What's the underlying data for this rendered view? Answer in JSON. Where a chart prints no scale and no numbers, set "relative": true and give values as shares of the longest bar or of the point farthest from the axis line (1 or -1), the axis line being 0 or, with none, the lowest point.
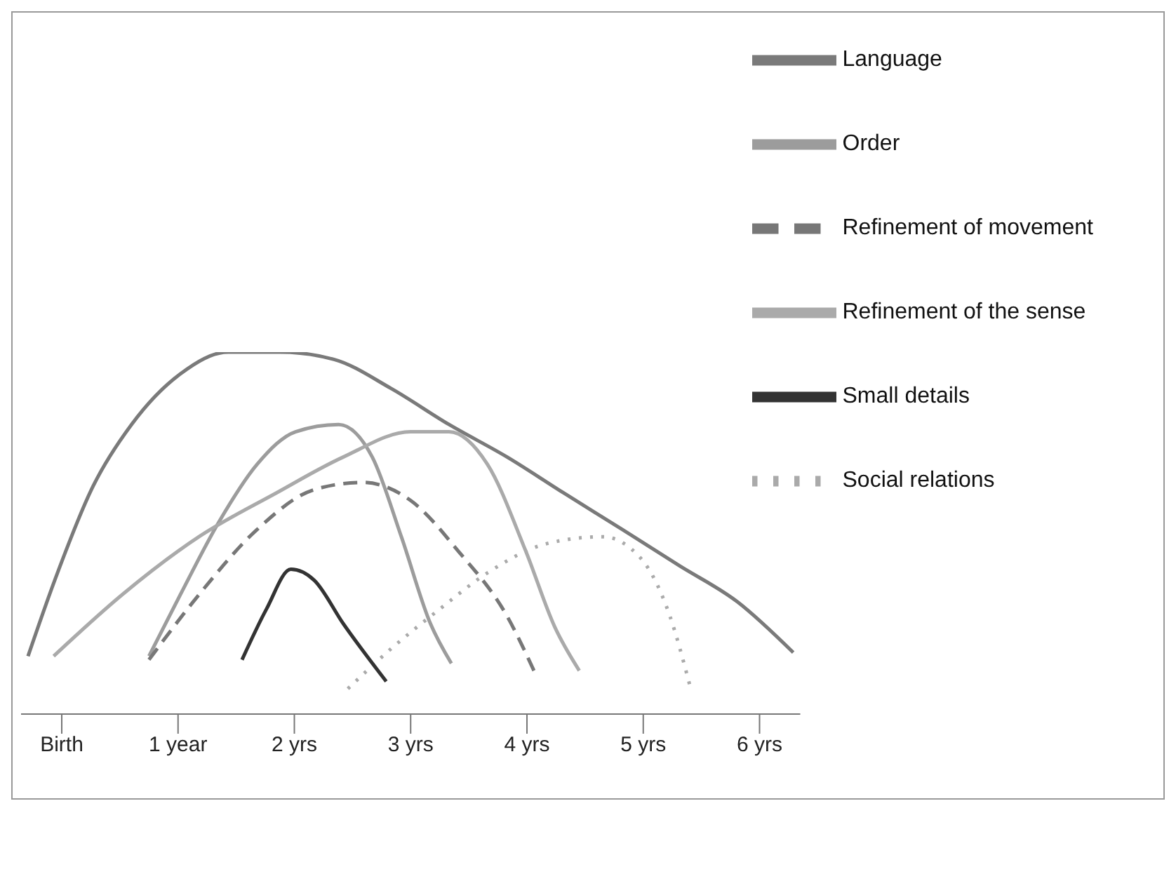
{
  "chart_data": {
    "type": "line",
    "relative": true,
    "legend": "top right",
    "xlim": [
      -0.35,
      6.35
    ],
    "xticks": [
      {
        "value": 0,
        "label": "Birth"
      },
      {
        "value": 1,
        "label": "1 year"
      },
      {
        "value": 2,
        "label": "2 yrs"
      },
      {
        "value": 3,
        "label": "3 yrs"
      },
      {
        "value": 4,
        "label": "4 yrs"
      },
      {
        "value": 5,
        "label": "5 yrs"
      },
      {
        "value": 6,
        "label": "6 yrs"
      }
    ],
    "series": [
      {
        "name": "Language",
        "color": "#7a7a7a",
        "line_style": "solid",
        "x": [
          -0.29,
          -0.06,
          0.27,
          0.6,
          1.02,
          1.43,
          1.88,
          2.34,
          2.83,
          3.33,
          3.83,
          4.32,
          4.82,
          5.31,
          5.81,
          6.29
        ],
        "values": [
          0.16,
          0.37,
          0.63,
          0.8,
          0.94,
          1,
          1,
          0.98,
          0.9,
          0.8,
          0.71,
          0.61,
          0.51,
          0.41,
          0.31,
          0.17
        ]
      },
      {
        "name": "Order",
        "color": "#9c9c9c",
        "line_style": "solid",
        "x": [
          0.75,
          1.02,
          1.35,
          1.68,
          2.01,
          2.38,
          2.67,
          2.92,
          3.17,
          3.35
        ],
        "values": [
          0.16,
          0.33,
          0.53,
          0.69,
          0.78,
          0.8,
          0.71,
          0.49,
          0.25,
          0.14
        ]
      },
      {
        "name": "Refinement of movement",
        "color": "#777777",
        "line_style": "dashed",
        "x": [
          0.75,
          1.18,
          1.68,
          2.17,
          2.59,
          3.0,
          3.41,
          3.83,
          4.06
        ],
        "values": [
          0.15,
          0.33,
          0.51,
          0.62,
          0.64,
          0.59,
          0.45,
          0.27,
          0.12
        ]
      },
      {
        "name": "Refinement of the sense",
        "color": "#aaaaaa",
        "line_style": "solid",
        "x": [
          -0.07,
          0.52,
          1.18,
          1.84,
          2.42,
          3.0,
          3.33,
          3.66,
          3.99,
          4.24,
          4.45
        ],
        "values": [
          0.16,
          0.33,
          0.49,
          0.61,
          0.71,
          0.78,
          0.78,
          0.69,
          0.45,
          0.24,
          0.12
        ]
      },
      {
        "name": "Social relations",
        "color": "#aaaaaa",
        "line_style": "dotted",
        "x": [
          2.46,
          2.83,
          3.25,
          3.66,
          4.16,
          4.65,
          4.98,
          5.23,
          5.4
        ],
        "values": [
          0.07,
          0.18,
          0.29,
          0.39,
          0.47,
          0.49,
          0.43,
          0.27,
          0.08
        ]
      },
      {
        "name": "Small details",
        "color": "#333333",
        "line_style": "solid",
        "x": [
          1.55,
          1.76,
          1.97,
          2.17,
          2.42,
          2.79
        ],
        "values": [
          0.15,
          0.29,
          0.4,
          0.37,
          0.25,
          0.09
        ]
      }
    ]
  }
}
